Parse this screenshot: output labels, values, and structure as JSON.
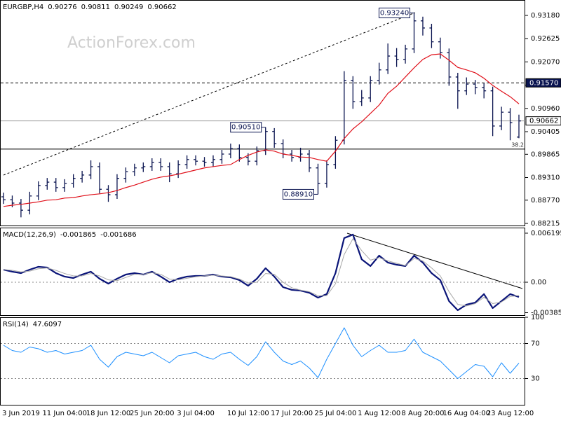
{
  "watermark": "ActionForex.com",
  "chart_data": [
    {
      "type": "ohlc",
      "title": "EURGBP,H4",
      "color": "#0a1450",
      "open": [
        0.8885,
        0.8878,
        0.887,
        0.8853,
        0.8887,
        0.8912,
        0.892,
        0.8907,
        0.8917,
        0.8929,
        0.8937,
        0.8957,
        0.8903,
        0.889,
        0.8929,
        0.8945,
        0.8954,
        0.8957,
        0.8967,
        0.8957,
        0.894,
        0.8962,
        0.8974,
        0.897,
        0.8967,
        0.8974,
        0.8987,
        0.9,
        0.8979,
        0.897,
        0.8995,
        0.9041,
        0.9012,
        0.8987,
        0.8979,
        0.8987,
        0.8954,
        0.8917,
        0.8962,
        0.902,
        0.9163,
        0.9112,
        0.9121,
        0.9163,
        0.9188,
        0.9221,
        0.9213,
        0.9238,
        0.9305,
        0.9288,
        0.9255,
        0.9229,
        0.9171,
        0.9138,
        0.9154,
        0.9146,
        0.9138,
        0.9054,
        0.9087,
        0.90276
      ],
      "high": [
        0.8895,
        0.8888,
        0.888,
        0.8897,
        0.8922,
        0.893,
        0.893,
        0.8927,
        0.8939,
        0.8947,
        0.8972,
        0.8967,
        0.8913,
        0.8939,
        0.8955,
        0.8964,
        0.8967,
        0.8977,
        0.8977,
        0.8967,
        0.8972,
        0.8984,
        0.8984,
        0.898,
        0.8984,
        0.8997,
        0.9012,
        0.901,
        0.8989,
        0.9005,
        0.9051,
        0.9049,
        0.9022,
        0.8997,
        0.9002,
        0.8997,
        0.8964,
        0.8972,
        0.903,
        0.9185,
        0.9173,
        0.914,
        0.9173,
        0.9205,
        0.9251,
        0.924,
        0.9248,
        0.9324,
        0.9315,
        0.9298,
        0.9265,
        0.9239,
        0.9181,
        0.917,
        0.9164,
        0.9156,
        0.9148,
        0.91,
        0.9097,
        0.90811
      ],
      "low": [
        0.8868,
        0.886,
        0.8836,
        0.8843,
        0.8877,
        0.8902,
        0.8897,
        0.8897,
        0.8907,
        0.8919,
        0.8927,
        0.8893,
        0.8873,
        0.888,
        0.8919,
        0.8935,
        0.8944,
        0.8947,
        0.8947,
        0.892,
        0.893,
        0.8952,
        0.896,
        0.8957,
        0.8957,
        0.8964,
        0.8977,
        0.8969,
        0.896,
        0.896,
        0.8985,
        0.9002,
        0.8977,
        0.8969,
        0.8969,
        0.8944,
        0.8891,
        0.8907,
        0.8952,
        0.901,
        0.9095,
        0.9102,
        0.9111,
        0.9153,
        0.9178,
        0.9195,
        0.9203,
        0.9228,
        0.927,
        0.924,
        0.9215,
        0.915,
        0.9095,
        0.9128,
        0.913,
        0.912,
        0.903,
        0.9044,
        0.902,
        0.90249
      ],
      "close": [
        0.8878,
        0.887,
        0.8853,
        0.8887,
        0.8912,
        0.892,
        0.8907,
        0.8917,
        0.8929,
        0.8937,
        0.8957,
        0.8903,
        0.889,
        0.8929,
        0.8945,
        0.8954,
        0.8957,
        0.8967,
        0.8957,
        0.894,
        0.8962,
        0.8974,
        0.897,
        0.8967,
        0.8974,
        0.8987,
        0.9,
        0.8979,
        0.897,
        0.8995,
        0.9041,
        0.9012,
        0.8987,
        0.8979,
        0.8987,
        0.8954,
        0.8917,
        0.8962,
        0.902,
        0.9163,
        0.9112,
        0.9121,
        0.9163,
        0.9188,
        0.9221,
        0.9213,
        0.9238,
        0.9305,
        0.9288,
        0.9255,
        0.9229,
        0.9171,
        0.9138,
        0.9154,
        0.9146,
        0.9138,
        0.9054,
        0.9087,
        0.9062,
        0.90662
      ],
      "overlay": {
        "color": "#e0101a",
        "values": [
          0.8862,
          0.8865,
          0.8867,
          0.887,
          0.8873,
          0.8877,
          0.8878,
          0.8882,
          0.8883,
          0.8887,
          0.889,
          0.8892,
          0.8895,
          0.89,
          0.8907,
          0.8913,
          0.892,
          0.8927,
          0.8932,
          0.8935,
          0.8939,
          0.8944,
          0.8949,
          0.8954,
          0.8957,
          0.896,
          0.8962,
          0.8974,
          0.8984,
          0.8992,
          0.8997,
          0.8994,
          0.8987,
          0.8984,
          0.898,
          0.8979,
          0.8974,
          0.897,
          0.8994,
          0.9024,
          0.9047,
          0.9064,
          0.9084,
          0.9104,
          0.9132,
          0.9149,
          0.9171,
          0.9193,
          0.9213,
          0.9224,
          0.9226,
          0.9211,
          0.9194,
          0.9188,
          0.9181,
          0.9168,
          0.9151,
          0.9137,
          0.9124,
          0.9107
        ]
      },
      "ylim": [
        0.88165,
        0.93548
      ],
      "yticks": [
        {
          "value": 0.9318,
          "label": "0.93180"
        },
        {
          "value": 0.92625,
          "label": "0.92625"
        },
        {
          "value": 0.9207,
          "label": "0.92070"
        },
        {
          "value": 0.91515,
          "label": "0.91515"
        },
        {
          "value": 0.9096,
          "label": "0.90960"
        },
        {
          "value": 0.90405,
          "label": "0.90405"
        },
        {
          "value": 0.89865,
          "label": "0.89865"
        },
        {
          "value": 0.8931,
          "label": "0.89310"
        },
        {
          "value": 0.8877,
          "label": "0.88770"
        },
        {
          "value": 0.88215,
          "label": "0.88215"
        }
      ],
      "levels": [
        {
          "value": 0.9157,
          "label": "0.91570",
          "style": "dashed"
        },
        {
          "value": 0.90662,
          "label": "0.90662",
          "style": "price"
        },
        {
          "value": 0.8999,
          "label": "38.2",
          "style": "fibo"
        }
      ],
      "annotations": [
        {
          "value": 0.9324,
          "label": "0.93240"
        },
        {
          "value": 0.9051,
          "label": "0.90510"
        },
        {
          "value": 0.8891,
          "label": "0.88910"
        }
      ]
    },
    {
      "type": "line",
      "title": "MACD(12,26,9)",
      "series": [
        {
          "color": "#0a1478",
          "width": 2.2,
          "values": [
            0.00159,
            0.00133,
            0.00115,
            0.00159,
            0.00195,
            0.00186,
            0.00115,
            0.00071,
            0.00053,
            0.00097,
            0.00133,
            0.00044,
            -0.00018,
            0.00044,
            0.00097,
            0.00115,
            0.00097,
            0.00133,
            0.00071,
            0,
            0.00044,
            0.00071,
            0.0008,
            0.0008,
            0.00097,
            0.00071,
            0.00062,
            0.00027,
            -0.00044,
            0.00044,
            0.00177,
            0.00071,
            -0.00062,
            -0.00097,
            -0.00106,
            -0.00133,
            -0.00195,
            -0.0015,
            0.00115,
            0.00558,
            0.00602,
            0.0029,
            0.00204,
            0.00336,
            0.00248,
            0.00221,
            0.00204,
            0.00336,
            0.00248,
            0.00115,
            0.00027,
            -0.00239,
            -0.00354,
            -0.00283,
            -0.00257,
            -0.0015,
            -0.00327,
            -0.00239,
            -0.0015,
            -0.001865
          ]
        },
        {
          "color": "#a8a8a8",
          "width": 1,
          "values": [
            0.0016,
            0.0015,
            0.0013,
            0.0014,
            0.0017,
            0.0018,
            0.0015,
            0.0011,
            0.0008,
            0.0008,
            0.0011,
            0.0008,
            0.0003,
            0.0002,
            0.0006,
            0.001,
            0.001,
            0.0012,
            0.001,
            0.0004,
            0.0003,
            0.0005,
            0.0007,
            0.0008,
            0.0009,
            0.0008,
            0.0007,
            0.0004,
            -0.0001,
            0,
            0.0011,
            0.001,
            0,
            -0.0007,
            -0.001,
            -0.0012,
            -0.0017,
            -0.0017,
            -0.0002,
            0.0035,
            0.0055,
            0.004,
            0.0028,
            0.0031,
            0.0027,
            0.0024,
            0.0021,
            0.003,
            0.0027,
            0.0018,
            0.0008,
            -0.0012,
            -0.0028,
            -0.003,
            -0.0027,
            -0.0019,
            -0.0027,
            -0.0025,
            -0.0018,
            -0.001686
          ]
        }
      ],
      "ylim": [
        -0.00416,
        0.0069
      ],
      "yticks": [
        0.006195,
        {
          "value": 0,
          "label": "0.00"
        },
        -0.003851
      ],
      "levels": [
        {
          "value": 0,
          "style": "dotted"
        }
      ]
    },
    {
      "type": "line",
      "title": "RSI(14)",
      "series": [
        {
          "color": "#1e90ff",
          "width": 1,
          "values": [
            68,
            62,
            60,
            66,
            64,
            60,
            62,
            58,
            60,
            62,
            68,
            52,
            43,
            55,
            60,
            58,
            56,
            60,
            54,
            48,
            56,
            58,
            60,
            55,
            52,
            58,
            60,
            52,
            45,
            55,
            72,
            60,
            50,
            46,
            50,
            42,
            31,
            52,
            70,
            88,
            68,
            55,
            62,
            68,
            60,
            60,
            62,
            75,
            60,
            55,
            50,
            40,
            30,
            38,
            46,
            44,
            32,
            48,
            36,
            47.6097
          ]
        }
      ],
      "ylim": [
        0,
        100
      ],
      "yticks": [
        100,
        70,
        30
      ],
      "levels": [
        {
          "value": 70,
          "style": "dotted"
        },
        {
          "value": 30,
          "style": "dotted"
        }
      ],
      "categories": [
        null,
        null,
        "3 Jun 2019",
        null,
        null,
        null,
        null,
        "11 Jun 04:00",
        null,
        null,
        null,
        null,
        "18 Jun 12:00",
        null,
        null,
        null,
        null,
        "25 Jun 20:00",
        null,
        null,
        null,
        null,
        "3 Jul 04:00",
        null,
        null,
        null,
        null,
        null,
        "10 Jul 12:00",
        null,
        null,
        null,
        null,
        "17 Jul 20:00",
        null,
        null,
        null,
        null,
        "25 Jul 04:00",
        null,
        null,
        null,
        null,
        "1 Aug 12:00",
        null,
        null,
        null,
        null,
        "8 Aug 20:00",
        null,
        null,
        null,
        null,
        "16 Aug 04:00",
        null,
        null,
        null,
        null,
        "23 Aug 12:00",
        null
      ]
    }
  ]
}
